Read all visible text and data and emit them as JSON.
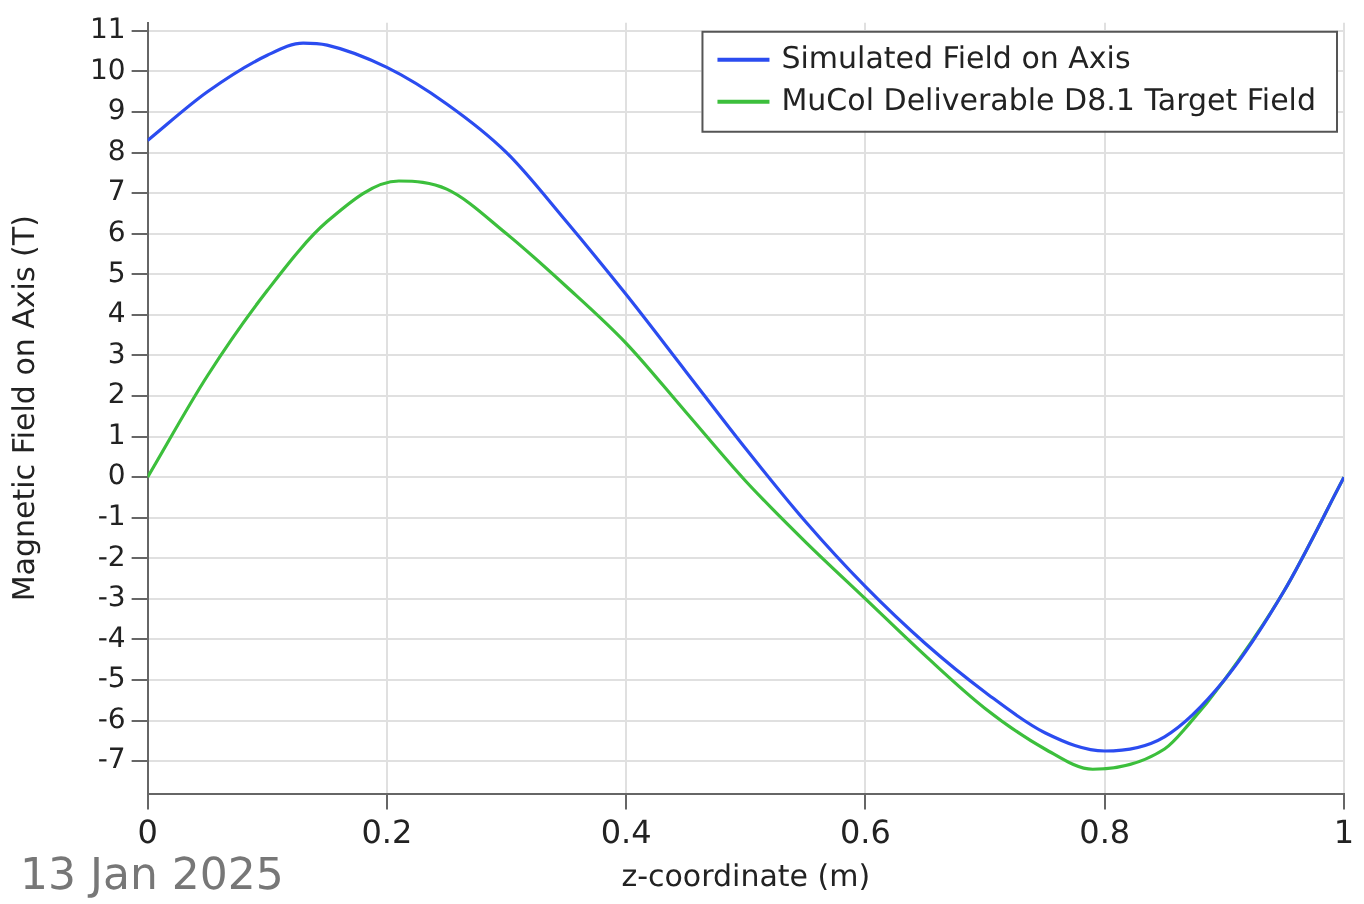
{
  "chart_data": {
    "type": "line",
    "xlabel": "z-coordinate (m)",
    "ylabel": "Magnetic Field on Axis (T)",
    "xlim": [
      0,
      1
    ],
    "xticks": [
      0,
      0.2,
      0.4,
      0.6,
      0.8,
      1
    ],
    "ylim": [
      -7.8,
      11.2
    ],
    "yticks": [
      -7,
      -6,
      -5,
      -4,
      -3,
      -2,
      -1,
      0,
      1,
      2,
      3,
      4,
      5,
      6,
      7,
      8,
      9,
      10,
      11
    ],
    "grid": true,
    "legend": "top right",
    "marker": "none",
    "line_style": "solid",
    "annotations": [
      "13 Jan 2025"
    ],
    "series": [
      {
        "name": "Simulated Field on Axis",
        "color": "#2b4cf0",
        "x": [
          0,
          0.05,
          0.1,
          0.13,
          0.15,
          0.2,
          0.25,
          0.3,
          0.35,
          0.4,
          0.45,
          0.5,
          0.55,
          0.6,
          0.65,
          0.7,
          0.75,
          0.8,
          0.85,
          0.9,
          0.95,
          1
        ],
        "values": [
          8.3,
          9.5,
          10.4,
          10.7,
          10.65,
          10.1,
          9.2,
          8.0,
          6.3,
          4.5,
          2.6,
          0.7,
          -1.1,
          -2.7,
          -4.1,
          -5.3,
          -6.3,
          -6.75,
          -6.4,
          -5.0,
          -2.8,
          0
        ]
      },
      {
        "name": "MuCol Deliverable D8.1 Target Field",
        "color": "#3cbf3c",
        "x": [
          0,
          0.05,
          0.1,
          0.15,
          0.21,
          0.25,
          0.3,
          0.35,
          0.4,
          0.45,
          0.5,
          0.55,
          0.6,
          0.65,
          0.7,
          0.75,
          0.79,
          0.85,
          0.87,
          0.9,
          0.95,
          1
        ],
        "values": [
          0,
          2.5,
          4.6,
          6.3,
          7.3,
          7.1,
          6.0,
          4.7,
          3.3,
          1.6,
          -0.1,
          -1.6,
          -3.0,
          -4.4,
          -5.7,
          -6.7,
          -7.2,
          -6.7,
          -6.1,
          -5.0,
          -2.8,
          0
        ]
      }
    ]
  }
}
